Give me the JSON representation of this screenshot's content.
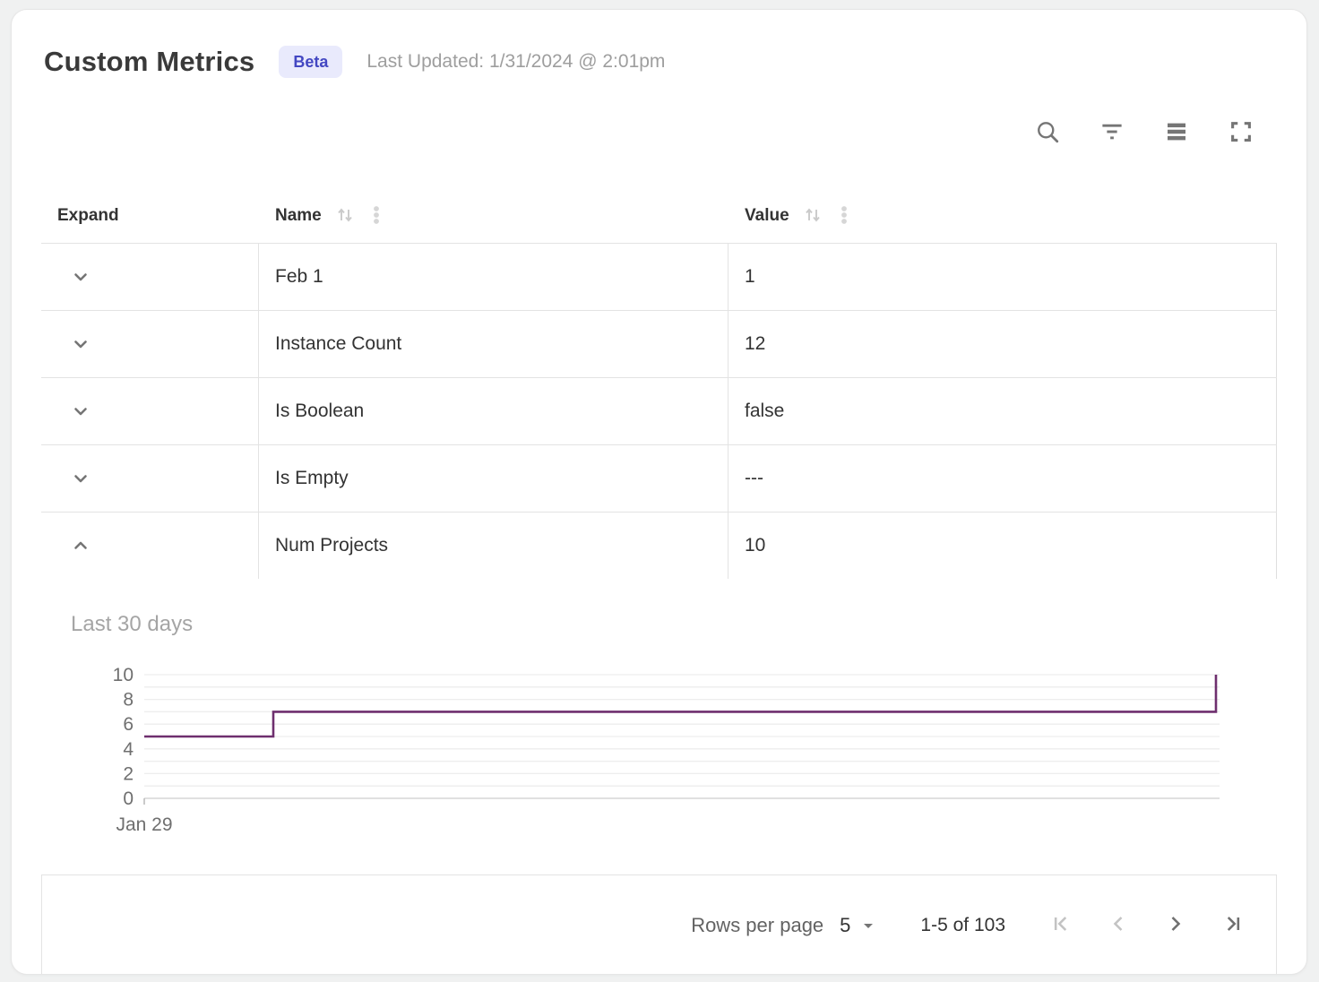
{
  "header": {
    "title": "Custom Metrics",
    "badge_label": "Beta",
    "last_updated": "Last Updated: 1/31/2024 @ 2:01pm"
  },
  "toolbar": {
    "icons": [
      "search-icon",
      "filter-icon",
      "density-icon",
      "fullscreen-icon"
    ]
  },
  "table": {
    "columns": [
      {
        "label": "Expand",
        "sortable": false,
        "menu": false
      },
      {
        "label": "Name",
        "sortable": true,
        "menu": true
      },
      {
        "label": "Value",
        "sortable": true,
        "menu": true
      }
    ],
    "rows": [
      {
        "name": "Feb 1",
        "value": "1",
        "expanded": false
      },
      {
        "name": "Instance Count",
        "value": "12",
        "expanded": false
      },
      {
        "name": "Is Boolean",
        "value": "false",
        "expanded": false
      },
      {
        "name": "Is Empty",
        "value": "---",
        "expanded": false
      },
      {
        "name": "Num Projects",
        "value": "10",
        "expanded": true
      }
    ]
  },
  "detail_panel": {
    "title": "Last 30 days"
  },
  "chart_data": {
    "type": "line",
    "subtype": "step",
    "title": "Last 30 days",
    "series": [
      {
        "name": "Num Projects",
        "points": [
          [
            0,
            5
          ],
          [
            3.6,
            5
          ],
          [
            3.6,
            7
          ],
          [
            29.9,
            7
          ],
          [
            29.9,
            10
          ]
        ]
      }
    ],
    "xlabel": "",
    "ylabel": "",
    "xlim": [
      0,
      30
    ],
    "ylim": [
      0,
      10
    ],
    "x_tick_labels": [
      {
        "x": 0,
        "label": "Jan 29"
      }
    ],
    "y_ticks_labeled": [
      0,
      2,
      4,
      6,
      8,
      10
    ],
    "y_gridlines_every": 1,
    "grid": true,
    "legend": "none",
    "line_color": "#6e2f6e",
    "grid_color": "#ededed",
    "zero_line_color": "#e0e0e0",
    "tick_label_color": "#6f6f6f"
  },
  "footer": {
    "rows_per_page_label": "Rows per page",
    "rows_per_page_value": "5",
    "range_label": "1-5 of 103"
  },
  "colors": {
    "accent_line": "#6e2f6e",
    "badge_bg": "#e9eafc",
    "badge_text": "#4347c2",
    "icon_gray": "#757575",
    "disabled_gray": "#c3c3c3",
    "border_gray": "#e3e3e3"
  }
}
